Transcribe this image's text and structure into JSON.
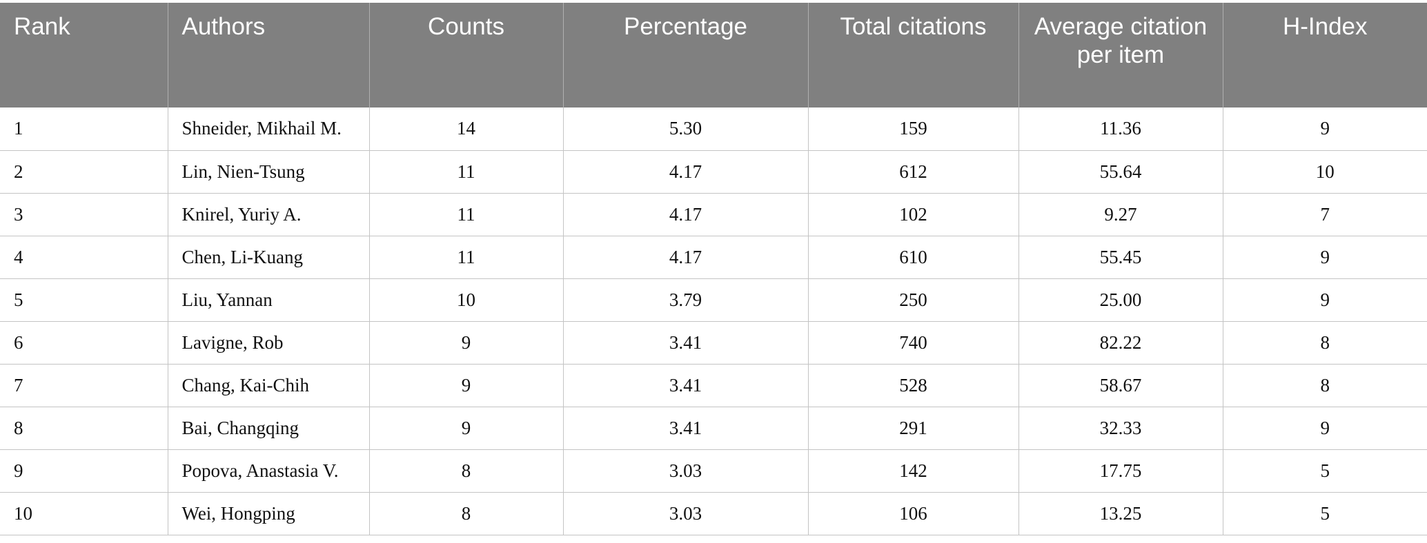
{
  "table": {
    "headers": [
      "Rank",
      "Authors",
      "Counts",
      "Percentage",
      "Total citations",
      "Average citation per item",
      "H-Index"
    ],
    "rows": [
      [
        "1",
        "Shneider, Mikhail M.",
        "14",
        "5.30",
        "159",
        "11.36",
        "9"
      ],
      [
        "2",
        "Lin, Nien-Tsung",
        "11",
        "4.17",
        "612",
        "55.64",
        "10"
      ],
      [
        "3",
        "Knirel, Yuriy A.",
        "11",
        "4.17",
        "102",
        "9.27",
        "7"
      ],
      [
        "4",
        "Chen, Li-Kuang",
        "11",
        "4.17",
        "610",
        "55.45",
        "9"
      ],
      [
        "5",
        "Liu, Yannan",
        "10",
        "3.79",
        "250",
        "25.00",
        "9"
      ],
      [
        "6",
        "Lavigne, Rob",
        "9",
        "3.41",
        "740",
        "82.22",
        "8"
      ],
      [
        "7",
        "Chang, Kai-Chih",
        "9",
        "3.41",
        "528",
        "58.67",
        "8"
      ],
      [
        "8",
        "Bai, Changqing",
        "9",
        "3.41",
        "291",
        "32.33",
        "9"
      ],
      [
        "9",
        "Popova, Anastasia V.",
        "8",
        "3.03",
        "142",
        "17.75",
        "5"
      ],
      [
        "10",
        "Wei, Hongping",
        "8",
        "3.03",
        "106",
        "13.25",
        "5"
      ]
    ]
  }
}
